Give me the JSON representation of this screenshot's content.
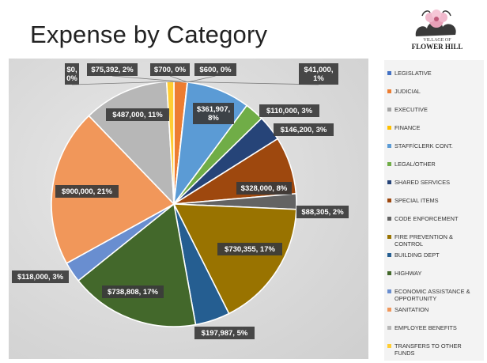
{
  "title": "Expense by Category",
  "logo": {
    "top": "VILLAGE OF",
    "main": "FLOWER HILL"
  },
  "chart_data": {
    "type": "pie",
    "title": "Expense by Category",
    "legend_position": "right",
    "slices": [
      {
        "name": "LEGISLATIVE",
        "value": 0,
        "label": "$0, 0%",
        "color": "#4472c4"
      },
      {
        "name": "JUDICIAL",
        "value": 75392,
        "label": "$75,392, 2%",
        "color": "#ed7d31"
      },
      {
        "name": "EXECUTIVE",
        "value": 700,
        "label": "$700, 0%",
        "color": "#a5a5a5"
      },
      {
        "name": "FINANCE",
        "value": 600,
        "label": "$600, 0%",
        "color": "#ffc000"
      },
      {
        "name": "STAFF/CLERK CONT.",
        "value": 361907,
        "label": "$361,907, 8%",
        "color": "#5b9bd5"
      },
      {
        "name": "LEGAL/OTHER",
        "value": 110000,
        "label": "$110,000, 3%",
        "color": "#70ad47"
      },
      {
        "name": "SHARED SERVICES",
        "value": 146200,
        "label": "$146,200, 3%",
        "color": "#264478"
      },
      {
        "name": "SPECIAL ITEMS",
        "value": 328000,
        "label": "$328,000, 8%",
        "color": "#9e480e"
      },
      {
        "name": "CODE ENFORCEMENT",
        "value": 88305,
        "label": "$88,305, 2%",
        "color": "#636363"
      },
      {
        "name": "FIRE PREVENTION & CONTROL",
        "value": 730355,
        "label": "$730,355, 17%",
        "color": "#997300"
      },
      {
        "name": "BUILDING DEPT",
        "value": 197987,
        "label": "$197,987, 5%",
        "color": "#255e91"
      },
      {
        "name": "HIGHWAY",
        "value": 738808,
        "label": "$738,808, 17%",
        "color": "#43682b"
      },
      {
        "name": "ECONOMIC ASSISTANCE & OPPORTUNITY",
        "value": 118000,
        "label": "$118,000, 3%",
        "color": "#698ed0"
      },
      {
        "name": "SANITATION",
        "value": 900000,
        "label": "$900,000, 21%",
        "color": "#f1975a"
      },
      {
        "name": "EMPLOYEE BENEFITS",
        "value": 487000,
        "label": "$487,000, 11%",
        "color": "#b7b7b7"
      },
      {
        "name": "TRANSFERS TO OTHER FUNDS",
        "value": 41000,
        "label": "$41,000, 1%",
        "color": "#ffcd33"
      }
    ]
  }
}
